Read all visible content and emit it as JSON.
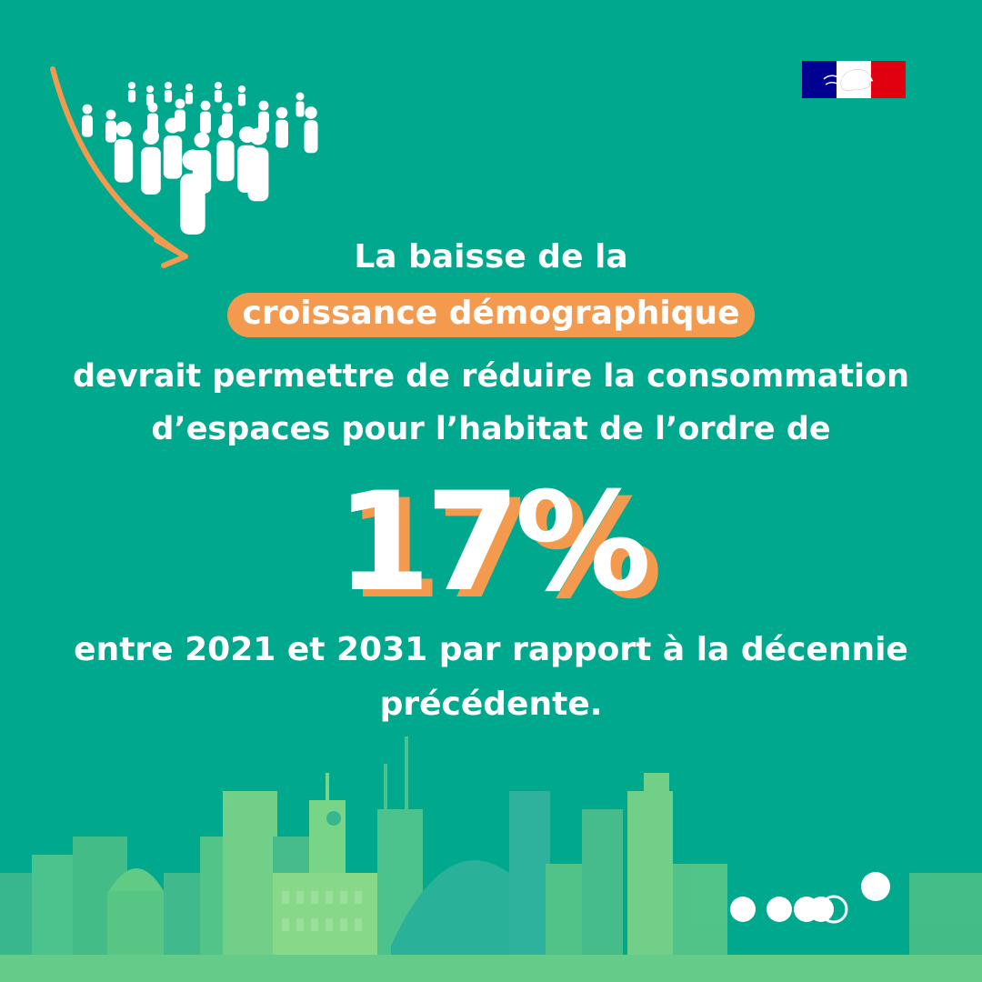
{
  "headline": {
    "line1": "La baisse de la",
    "highlight": "croissance démographique",
    "line3": "devrait permettre de réduire la consommation",
    "line4": "d’espaces pour l’habitat de l’ordre de"
  },
  "stat": {
    "value": "17%"
  },
  "footer_text": {
    "line1": "entre 2021 et 2031 par rapport à la décennie",
    "line2": "précédente."
  },
  "colors": {
    "background": "#00a98d",
    "accent": "#f49a4f",
    "text": "#ffffff"
  },
  "icons": {
    "arrow": "down-right-arrow-icon",
    "crowd": "crowd-icon",
    "flag": "republique-francaise-logo",
    "skyline": "city-skyline-illustration",
    "dots": "brand-dots-icon"
  }
}
